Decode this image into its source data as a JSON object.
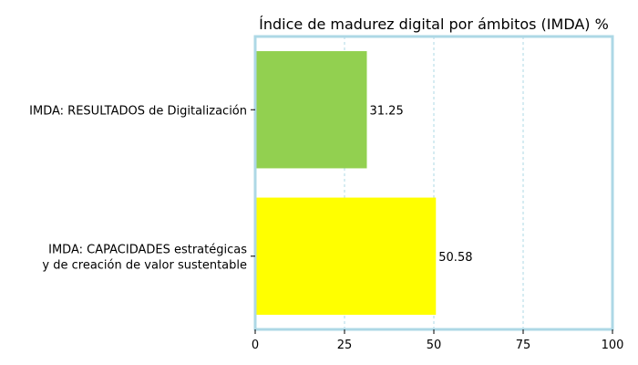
{
  "chart_data": {
    "type": "bar",
    "orientation": "horizontal",
    "title": "Índice de madurez digital por ámbitos (IMDA) %",
    "xlabel": "",
    "ylabel": "",
    "xlim": [
      0,
      100
    ],
    "x_ticks": [
      "0",
      "25",
      "50",
      "75",
      "100"
    ],
    "grid": "vertical-dashed",
    "categories": [
      {
        "lines": [
          "IMDA: RESULTADOS de Digitalización"
        ],
        "value": 31.25,
        "value_label": "31.25",
        "color": "#92d050"
      },
      {
        "lines": [
          "IMDA: CAPACIDADES estratégicas",
          "y de creación de valor sustentable"
        ],
        "value": 50.58,
        "value_label": "50.58",
        "color": "#ffff00"
      }
    ],
    "axis_color": "#add8e6",
    "grid_color": "#add8e6"
  }
}
